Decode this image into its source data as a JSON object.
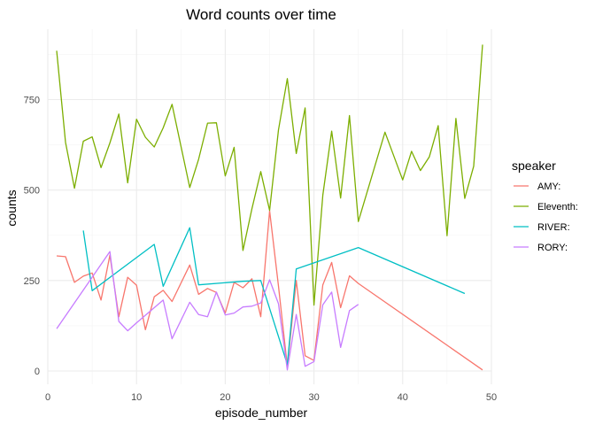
{
  "chart_data": {
    "type": "line",
    "title": "Word counts over time",
    "xlabel": "episode_number",
    "ylabel": "counts",
    "xlim": [
      0,
      50
    ],
    "ylim": [
      0,
      900
    ],
    "x_ticks": [
      0,
      10,
      20,
      30,
      40,
      50
    ],
    "y_ticks": [
      0,
      250,
      500,
      750
    ],
    "grid": true,
    "legend": {
      "title": "speaker",
      "position": "right"
    },
    "series": [
      {
        "name": "AMY:",
        "color": "#F8766D",
        "x": [
          1,
          2,
          3,
          4,
          5,
          6,
          7,
          8,
          9,
          10,
          11,
          12,
          13,
          14,
          16,
          17,
          18,
          19,
          20,
          21,
          22,
          23,
          24,
          25,
          26,
          27,
          28,
          29,
          30,
          31,
          32,
          33,
          34,
          35,
          49
        ],
        "y": [
          318,
          316,
          245,
          262,
          271,
          196,
          320,
          150,
          259,
          237,
          114,
          205,
          223,
          192,
          293,
          212,
          228,
          217,
          160,
          245,
          230,
          255,
          150,
          443,
          235,
          13,
          250,
          42,
          29,
          238,
          300,
          175,
          263,
          242,
          3
        ]
      },
      {
        "name": "Eleventh:",
        "color": "#7CAE00",
        "x": [
          1,
          2,
          3,
          4,
          5,
          6,
          7,
          8,
          9,
          10,
          11,
          12,
          13,
          14,
          16,
          17,
          18,
          19,
          20,
          21,
          22,
          23,
          24,
          25,
          26,
          27,
          28,
          29,
          30,
          31,
          32,
          33,
          34,
          35,
          38,
          40,
          41,
          42,
          43,
          44,
          45,
          46,
          47,
          48,
          49
        ],
        "y": [
          885,
          632,
          505,
          635,
          647,
          562,
          630,
          710,
          520,
          696,
          646,
          619,
          672,
          737,
          507,
          585,
          685,
          686,
          539,
          618,
          333,
          448,
          551,
          444,
          666,
          808,
          601,
          727,
          182,
          486,
          663,
          478,
          706,
          413,
          660,
          528,
          607,
          554,
          592,
          678,
          374,
          698,
          477,
          566,
          902
        ]
      },
      {
        "name": "RIVER:",
        "color": "#00BFC4",
        "x": [
          4,
          5,
          12,
          13,
          16,
          17,
          22,
          24,
          27,
          28,
          35,
          47
        ],
        "y": [
          388,
          222,
          350,
          234,
          396,
          238,
          248,
          250,
          18,
          282,
          341,
          214
        ]
      },
      {
        "name": "RORY:",
        "color": "#C77CFF",
        "x": [
          1,
          7,
          8,
          9,
          10,
          13,
          14,
          16,
          17,
          18,
          19,
          20,
          21,
          22,
          23,
          24,
          25,
          26,
          27,
          28,
          29,
          30,
          31,
          32,
          33,
          34,
          35
        ],
        "y": [
          117,
          330,
          137,
          111,
          133,
          196,
          89,
          190,
          156,
          150,
          218,
          155,
          160,
          177,
          179,
          188,
          252,
          186,
          3,
          156,
          13,
          26,
          183,
          218,
          65,
          167,
          184
        ]
      }
    ]
  }
}
